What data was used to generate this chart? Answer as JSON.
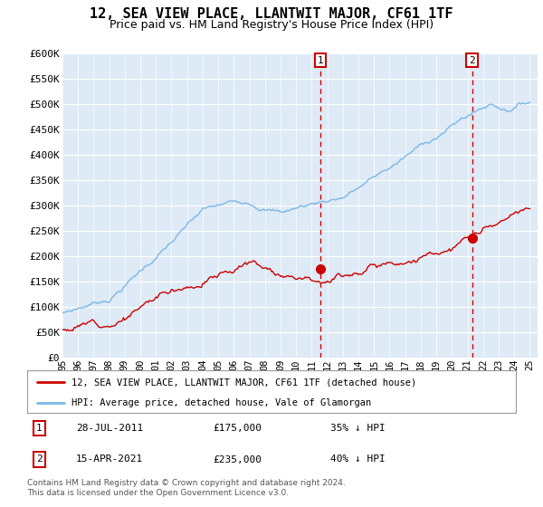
{
  "title": "12, SEA VIEW PLACE, LLANTWIT MAJOR, CF61 1TF",
  "subtitle": "Price paid vs. HM Land Registry's House Price Index (HPI)",
  "ylim": [
    0,
    600000
  ],
  "yticks": [
    0,
    50000,
    100000,
    150000,
    200000,
    250000,
    300000,
    350000,
    400000,
    450000,
    500000,
    550000,
    600000
  ],
  "ytick_labels": [
    "£0",
    "£50K",
    "£100K",
    "£150K",
    "£200K",
    "£250K",
    "£300K",
    "£350K",
    "£400K",
    "£450K",
    "£500K",
    "£550K",
    "£600K"
  ],
  "hpi_color": "#7ab8e8",
  "price_color": "#cc0000",
  "marker1_date": 2011.57,
  "marker1_value": 175000,
  "marker2_date": 2021.29,
  "marker2_value": 235000,
  "marker1_date_str": "28-JUL-2011",
  "marker1_price_str": "£175,000",
  "marker1_hpi_str": "35% ↓ HPI",
  "marker2_date_str": "15-APR-2021",
  "marker2_price_str": "£235,000",
  "marker2_hpi_str": "40% ↓ HPI",
  "legend_label_price": "12, SEA VIEW PLACE, LLANTWIT MAJOR, CF61 1TF (detached house)",
  "legend_label_hpi": "HPI: Average price, detached house, Vale of Glamorgan",
  "footer_text": "Contains HM Land Registry data © Crown copyright and database right 2024.\nThis data is licensed under the Open Government Licence v3.0.",
  "plot_bg_color": "#deeaf5",
  "grid_color": "#ffffff",
  "title_fontsize": 11,
  "subtitle_fontsize": 9
}
